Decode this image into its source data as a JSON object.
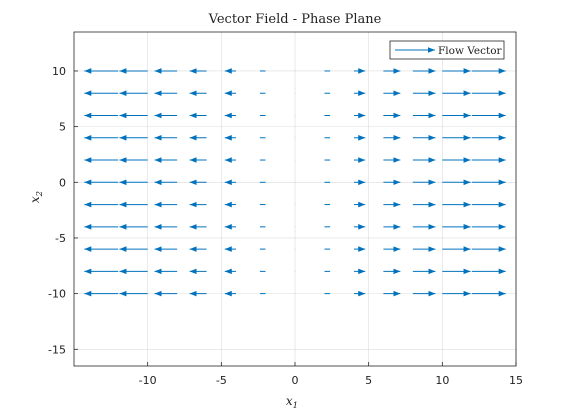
{
  "chart_data": {
    "type": "quiver",
    "title": "Vector Field - Phase Plane",
    "xlabel_base": "x",
    "xlabel_sub": "1",
    "ylabel_base": "x",
    "ylabel_sub": "2",
    "xlim": [
      -15,
      15
    ],
    "ylim": [
      -16.5,
      13.5
    ],
    "xticks": [
      -10,
      -5,
      0,
      5,
      10,
      15
    ],
    "yticks": [
      -15,
      -10,
      -5,
      0,
      5,
      10
    ],
    "xtick_labels": [
      "-10",
      "-5",
      "0",
      "5",
      "10",
      "15"
    ],
    "ytick_labels": [
      "-15",
      "-10",
      "-5",
      "0",
      "5",
      "10"
    ],
    "grid": true,
    "legend": {
      "placement": "top-right",
      "label": "Flow Vector"
    },
    "arrow_color": "#0072BD",
    "grid_x": [
      -12,
      -10,
      -8,
      -6,
      -4,
      -2,
      0,
      2,
      4,
      6,
      8,
      10,
      12
    ],
    "grid_y": [
      10,
      8,
      6,
      4,
      2,
      0,
      -2,
      -4,
      -6,
      -8,
      -10
    ],
    "flow": {
      "u": "x1",
      "v": "0"
    }
  }
}
